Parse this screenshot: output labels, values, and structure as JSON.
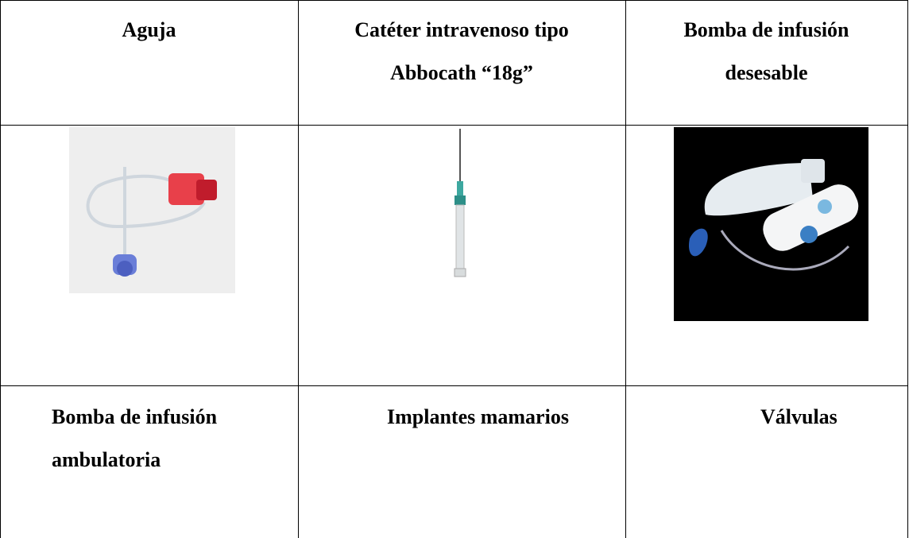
{
  "table": {
    "rows": [
      [
        [
          "Aguja"
        ],
        [
          "Catéter intravenoso tipo",
          "Abbocath “18g”"
        ],
        [
          "Bomba de infusión",
          "desesable"
        ]
      ],
      [
        [
          "Bomba de infusión",
          "ambulatoria"
        ],
        [
          "Implantes mamarios"
        ],
        [
          "Válvulas"
        ]
      ]
    ]
  }
}
